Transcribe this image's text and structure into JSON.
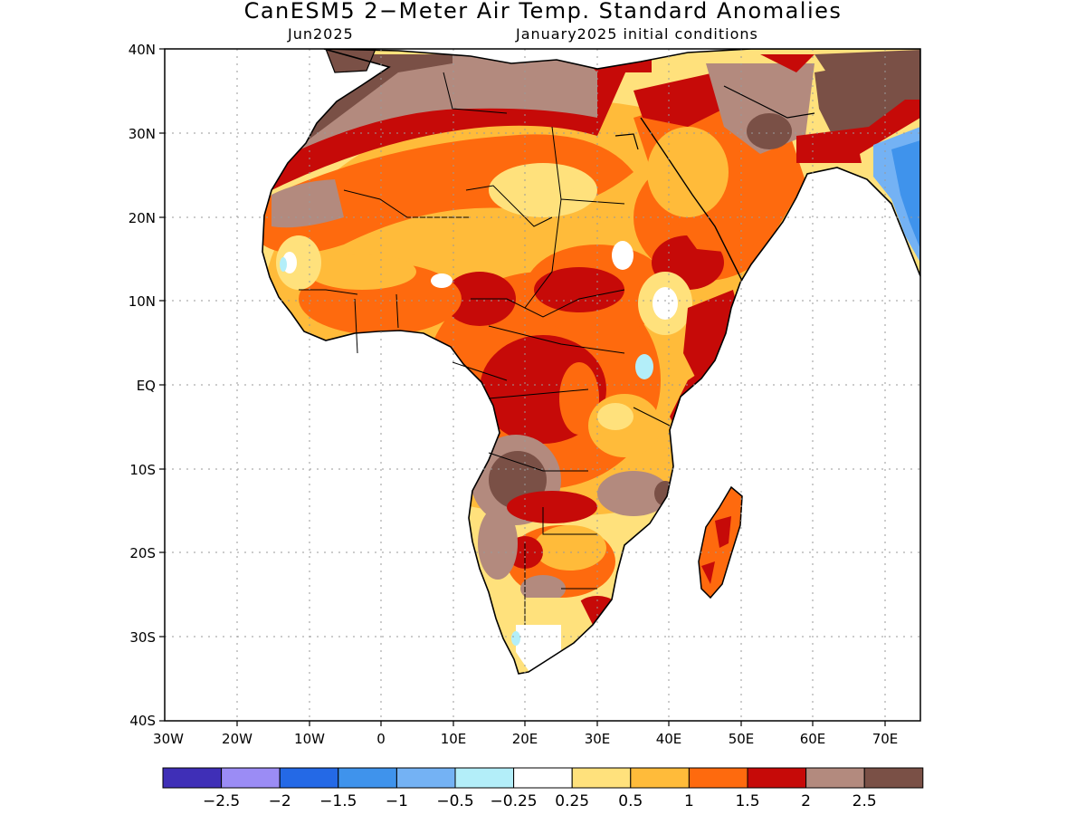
{
  "title": "CanESM5 2−Meter Air Temp. Standard Anomalies",
  "subtitle_left": "Jun2025",
  "subtitle_right": "January2025 initial conditions",
  "map": {
    "lat_ticks": [
      "40N",
      "30N",
      "20N",
      "10N",
      "EQ",
      "10S",
      "20S",
      "30S",
      "40S"
    ],
    "lon_ticks": [
      "30W",
      "20W",
      "10W",
      "0",
      "10E",
      "20E",
      "30E",
      "40E",
      "50E",
      "60E",
      "70E"
    ],
    "grid": "dotted",
    "region": "Africa"
  },
  "colorbar": {
    "colors": [
      "#3f2fb7",
      "#9b8cf5",
      "#2469e6",
      "#3f93ec",
      "#74b2f4",
      "#b3eef9",
      "#ffffff",
      "#ffe17c",
      "#ffbb3a",
      "#fe6a0e",
      "#c60a08",
      "#b38a7e",
      "#7a5046"
    ],
    "labels": [
      "−2.5",
      "−2",
      "−1.5",
      "−1",
      "−0.5",
      "−0.25",
      "0.25",
      "0.5",
      "1",
      "1.5",
      "2",
      "2.5"
    ]
  }
}
